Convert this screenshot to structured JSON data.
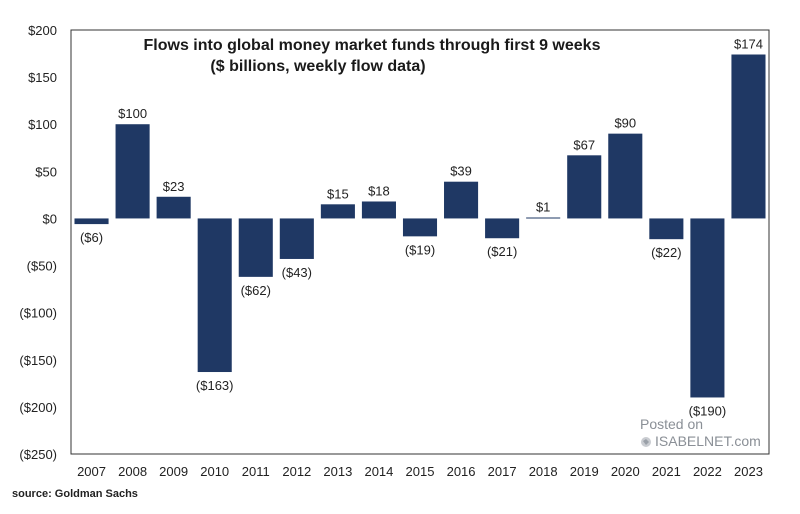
{
  "chart_data": {
    "type": "bar",
    "title_lines": [
      "Flows into global money market funds through first 9 weeks",
      "($ billions, weekly flow data)"
    ],
    "categories": [
      "2007",
      "2008",
      "2009",
      "2010",
      "2011",
      "2012",
      "2013",
      "2014",
      "2015",
      "2016",
      "2017",
      "2018",
      "2019",
      "2020",
      "2021",
      "2022",
      "2023"
    ],
    "values": [
      -6,
      100,
      23,
      -163,
      -62,
      -43,
      15,
      18,
      -19,
      39,
      -21,
      1,
      67,
      90,
      -22,
      -190,
      174
    ],
    "value_labels": [
      "($6)",
      "$100",
      "$23",
      "($163)",
      "($62)",
      "($43)",
      "$15",
      "$18",
      "($19)",
      "$39",
      "($21)",
      "$1",
      "$67",
      "$90",
      "($22)",
      "($190)",
      "$174"
    ],
    "ylim": [
      -250,
      200
    ],
    "yticks": [
      200,
      150,
      100,
      50,
      0,
      -50,
      -100,
      -150,
      -200,
      -250
    ],
    "ytick_labels": [
      "$200",
      "$150",
      "$100",
      "$50",
      "$0",
      "($50)",
      "($100)",
      "($150)",
      "($200)",
      "($250)"
    ],
    "bar_color": "#1f3864",
    "xlabel": "",
    "ylabel": ""
  },
  "source": "source: Goldman Sachs",
  "watermark": {
    "line1": "Posted on",
    "line2": "ISABELNET.com"
  }
}
